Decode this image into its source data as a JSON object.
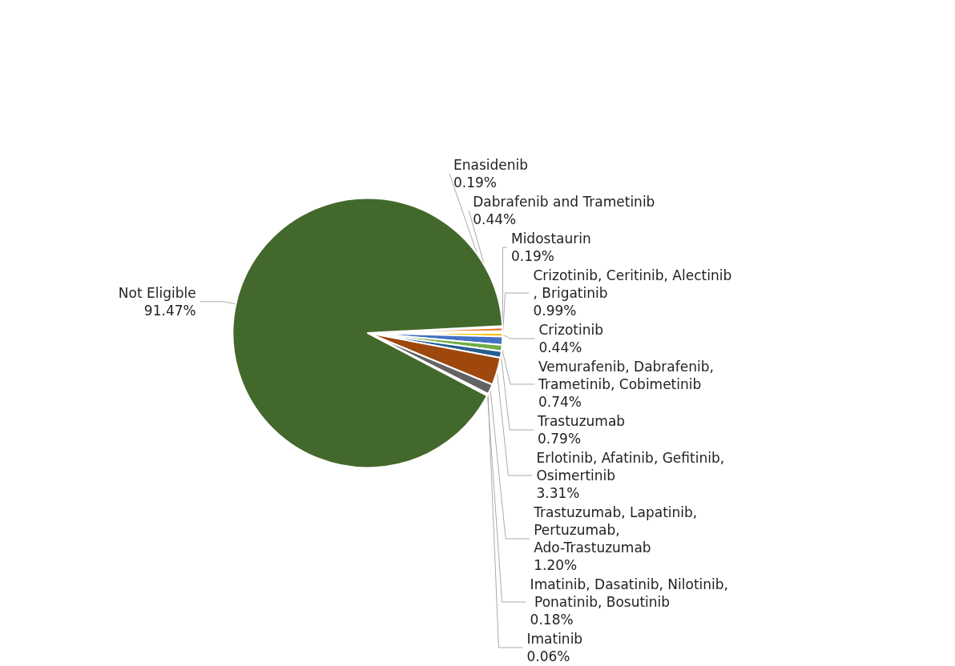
{
  "chart_data": {
    "type": "pie",
    "categories": [
      "Enasidenib",
      "Dabrafenib and Trametinib",
      "Midostaurin",
      "Crizotinib",
      "Crizotinib, Ceritinib, Alectinib, Brigatinib",
      "Vemurafenib, Dabrafenib, Trametinib, Cobimetinib",
      "Trastuzumab",
      "Erlotinib, Afatinib, Gefitinib, Osimertinib",
      "Trastuzumab, Lapatinib, Pertuzumab, Ado-Trastuzumab",
      "Imatinib",
      "Imatinib, Dasatinib, Nilotinib, Ponatinib, Bosutinib",
      "Not Eligible"
    ],
    "values": [
      0.19,
      0.44,
      0.19,
      0.44,
      0.99,
      0.74,
      0.79,
      3.31,
      1.2,
      0.06,
      0.18,
      91.47
    ],
    "value_labels": [
      "0.19%",
      "0.44%",
      "0.19%",
      "0.44%",
      "0.99%",
      "0.74%",
      "0.79%",
      "3.31%",
      "1.20%",
      "0.06%",
      "0.18%",
      "91.47%"
    ],
    "colors": [
      "#4472c4",
      "#ed7d31",
      "#a5a5a5",
      "#ffc000",
      "#4472c4",
      "#70ad47",
      "#255e91",
      "#9e480e",
      "#636363",
      "#997300",
      "#264478",
      "#43682b"
    ],
    "legend": false
  }
}
